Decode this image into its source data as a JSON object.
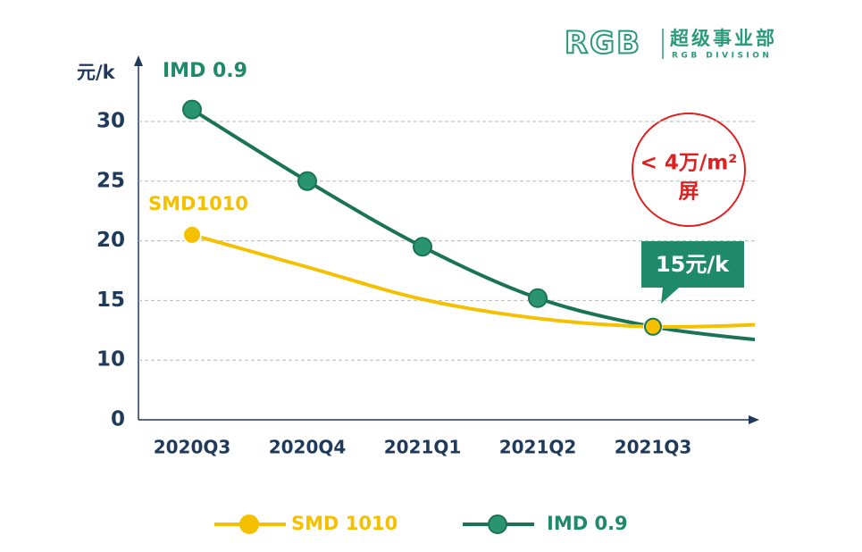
{
  "chart_data": {
    "type": "line",
    "y_label": "元/k",
    "categories": [
      "2020Q3",
      "2020Q4",
      "2021Q1",
      "2021Q2",
      "2021Q3",
      null
    ],
    "series": [
      {
        "name": "SMD 1010",
        "color": "#f5c000",
        "values": [
          20.5,
          17.8,
          15.1,
          13.5,
          12.8,
          13.0
        ],
        "markers": [
          0,
          4
        ]
      },
      {
        "name": "IMD 0.9",
        "color": "#1b7355",
        "marker_color": "#2a9470",
        "values": [
          31,
          25,
          19.5,
          15.2,
          12.8,
          11.6
        ],
        "markers": [
          0,
          1,
          2,
          3,
          4
        ]
      }
    ],
    "ylim": [
      0,
      35
    ],
    "yticks": [
      0,
      10,
      15,
      20,
      25,
      30
    ],
    "grid": true,
    "axis_break": true,
    "annotations": {
      "imd": "IMD 0.9",
      "smd": "SMD1010",
      "callout": "15元/k",
      "badge_1": "< 4万/m²",
      "badge_2": "屏"
    },
    "logo": {
      "mark": "RGB",
      "name": "超级事业部",
      "sub": "RGB DIVISION"
    }
  }
}
